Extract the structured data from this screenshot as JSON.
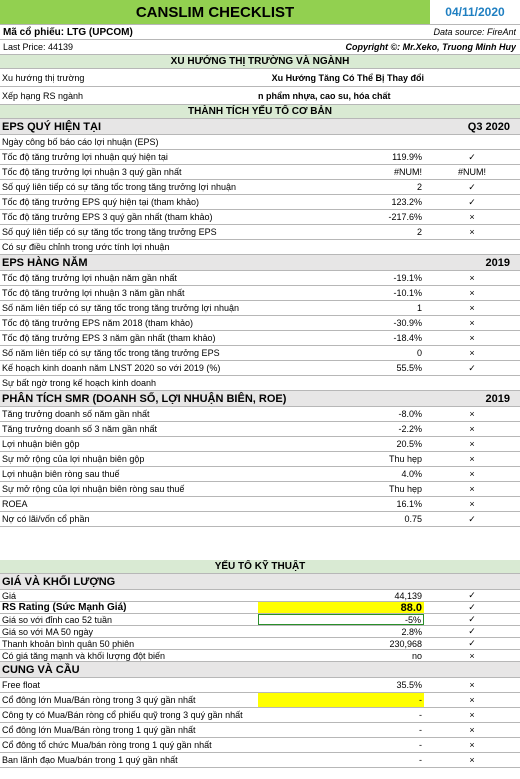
{
  "header": {
    "title": "CANSLIM CHECKLIST",
    "date": "04/11/2020",
    "ticker": "Mã cổ phiếu: LTG (UPCOM)",
    "data_source": "Data source: FireAnt",
    "last_price": "Last Price: 44139",
    "copyright": "Copyright ©: Mr.Xeko, Truong Minh Huy"
  },
  "sections": {
    "market": "XU HƯỚNG THỊ TRƯỜNG VÀ NGÀNH",
    "fundamentals": "THÀNH TÍCH YẾU TỐ CƠ BẢN",
    "technical": "YẾU TỐ KỸ THUẬT"
  },
  "market_rows": [
    {
      "label": "Xu hướng thị trường",
      "value": "Xu Hướng Tăng Có Thể Bị Thay đổi"
    },
    {
      "label": "Xếp hạng RS ngành",
      "value": "n phẩm nhựa, cao su, hóa chất"
    }
  ],
  "eps_q": {
    "heading": "EPS QUÝ HIỆN TẠI",
    "period": "Q3 2020",
    "rows": [
      {
        "label": "Ngày công bố báo cáo lợi nhuận (EPS)",
        "value": "",
        "mark": ""
      },
      {
        "label": "Tốc độ tăng trưởng lợi nhuận quý hiện tại",
        "value": "119.9%",
        "mark": "✓"
      },
      {
        "label": "Tốc độ tăng trưởng lợi nhuận 3 quý gần nhất",
        "value": "#NUM!",
        "mark": "#NUM!"
      },
      {
        "label": "Số quý liên tiếp có sự tăng tốc trong tăng trưởng lợi nhuận",
        "value": "2",
        "mark": "✓"
      },
      {
        "label": "Tốc độ tăng trưởng EPS quý hiện tại (tham khảo)",
        "value": "123.2%",
        "mark": "✓"
      },
      {
        "label": "Tốc độ tăng trưởng EPS 3 quý gần nhất (tham khảo)",
        "value": "-217.6%",
        "mark": "×"
      },
      {
        "label": "Số quý liên tiếp có sự tăng tốc trong tăng trưởng EPS",
        "value": "2",
        "mark": "×"
      },
      {
        "label": "Có sự điều chỉnh trong ước tính lợi nhuận",
        "value": "",
        "mark": ""
      }
    ]
  },
  "eps_y": {
    "heading": "EPS HÀNG NĂM",
    "period": "2019",
    "rows": [
      {
        "label": "Tốc độ tăng trưởng lợi nhuận năm gần nhất",
        "value": "-19.1%",
        "mark": "×"
      },
      {
        "label": "Tốc độ tăng trưởng lợi nhuận 3 năm gần nhất",
        "value": "-10.1%",
        "mark": "×"
      },
      {
        "label": "Số năm liên tiếp có sự tăng tốc trong tăng trưởng lợi nhuận",
        "value": "1",
        "mark": "×"
      },
      {
        "label": "Tốc độ tăng trưởng EPS năm 2018 (tham khảo)",
        "value": "-30.9%",
        "mark": "×"
      },
      {
        "label": "Tốc độ tăng trưởng EPS 3 năm gần nhất (tham khảo)",
        "value": "-18.4%",
        "mark": "×"
      },
      {
        "label": "Số năm liên tiếp có sự tăng tốc trong tăng trưởng EPS",
        "value": "0",
        "mark": "×"
      },
      {
        "label": "Kế hoạch kinh doanh năm LNST 2020 so với 2019 (%)",
        "value": "55.5%",
        "mark": "✓"
      },
      {
        "label": "Sự bất ngờ trong kế hoạch kinh doanh",
        "value": "",
        "mark": ""
      }
    ]
  },
  "smr": {
    "heading": "PHÂN TÍCH SMR (DOANH SỐ, LỢI NHUẬN BIÊN, ROE)",
    "period": "2019",
    "rows": [
      {
        "label": "Tăng trưởng doanh số năm gần nhất",
        "value": "-8.0%",
        "mark": "×"
      },
      {
        "label": "Tăng trưởng doanh số 3 năm gần nhất",
        "value": "-2.2%",
        "mark": "×"
      },
      {
        "label": "Lợi nhuận biên gộp",
        "value": "20.5%",
        "mark": "×"
      },
      {
        "label": "Sự mở rộng của lợi nhuận biên gộp",
        "value": "Thu hẹp",
        "mark": "×"
      },
      {
        "label": "Lợi nhuận biên ròng sau thuế",
        "value": "4.0%",
        "mark": "×"
      },
      {
        "label": "Sự mở rộng của lợi nhuận biên ròng sau thuế",
        "value": "Thu hẹp",
        "mark": "×"
      },
      {
        "label": "ROEA",
        "value": "16.1%",
        "mark": "×"
      },
      {
        "label": "Nợ có lãi/vốn cổ phần",
        "value": "0.75",
        "mark": "✓"
      }
    ]
  },
  "price": {
    "heading": "GIÁ VÀ KHỐI LƯỢNG",
    "rows": [
      {
        "label": "Giá",
        "value": "44,139",
        "mark": "✓"
      },
      {
        "label": "RS Rating (Sức Mạnh Giá)",
        "value": "88.0",
        "mark": "✓"
      },
      {
        "label": "Giá so với đỉnh cao 52 tuần",
        "value": "-5%",
        "mark": "✓"
      },
      {
        "label": "Giá so với MA 50 ngày",
        "value": "2.8%",
        "mark": "✓"
      },
      {
        "label": "Thanh khoản bình quân 50 phiên",
        "value": "230,968",
        "mark": "✓"
      },
      {
        "label": "Có giá tăng mạnh và khối lượng đột biến",
        "value": "no",
        "mark": "×"
      }
    ]
  },
  "supply": {
    "heading": "CUNG VÀ CẦU",
    "rows": [
      {
        "label": "Free float",
        "value": "35.5%",
        "mark": "×"
      },
      {
        "label": "Cổ đông lớn Mua/Bán ròng trong 3 quý gần nhất",
        "value": "-",
        "mark": "×"
      },
      {
        "label": "Công ty có Mua/Bán ròng cổ phiếu quỹ trong 3 quý gần nhất",
        "value": "-",
        "mark": "×"
      },
      {
        "label": "Cổ đông lớn Mua/Bán ròng trong 1 quý gần nhất",
        "value": "-",
        "mark": "×"
      },
      {
        "label": "Cổ đông tổ chức Mua/bán ròng trong 1 quý gần nhất",
        "value": "-",
        "mark": "×"
      },
      {
        "label": "Ban lãnh đạo Mua/bán trong 1 quý gần nhất",
        "value": "-",
        "mark": "×"
      }
    ]
  },
  "colors": {
    "title_bg": "#92d050",
    "section_bg": "#d9ead3",
    "highlight": "#ffff00",
    "date": "#1f7fc1"
  }
}
